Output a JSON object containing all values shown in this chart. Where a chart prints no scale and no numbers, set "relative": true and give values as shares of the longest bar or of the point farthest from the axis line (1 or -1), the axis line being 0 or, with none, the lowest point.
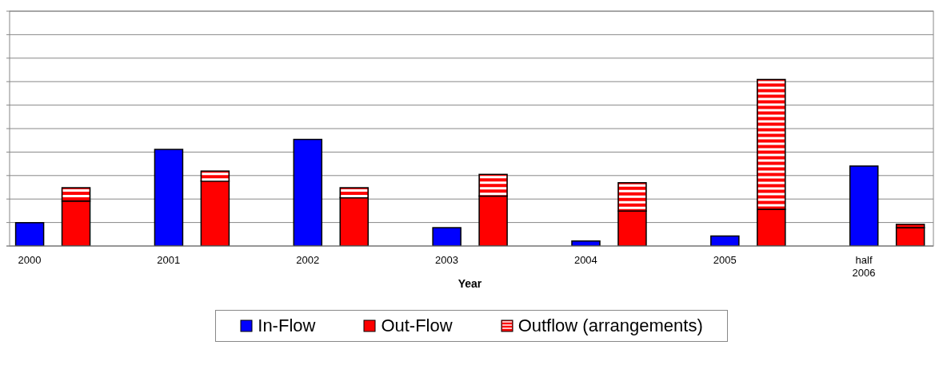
{
  "chart_data": {
    "type": "bar",
    "xlabel": "Year",
    "categories": [
      "2000",
      null,
      null,
      "2001",
      null,
      null,
      "2002",
      null,
      null,
      "2003",
      null,
      null,
      "2004",
      null,
      null,
      "2005",
      null,
      null,
      "half 2006",
      null
    ],
    "relative": true,
    "stacked": true,
    "grid": "y",
    "legend": "bottom",
    "series": [
      {
        "name": "In-Flow",
        "color": "#0000ff",
        "values": [
          0.14,
          null,
          null,
          0.58,
          null,
          null,
          0.64,
          null,
          null,
          0.11,
          null,
          null,
          0.03,
          null,
          null,
          0.06,
          null,
          null,
          0.48,
          null
        ]
      },
      {
        "name": "Out-Flow",
        "color": "#ff0000",
        "values": [
          null,
          0.27,
          null,
          null,
          0.39,
          null,
          null,
          0.29,
          null,
          null,
          0.3,
          null,
          null,
          0.21,
          null,
          null,
          0.22,
          null,
          null,
          0.11
        ]
      },
      {
        "name": "Outflow (arrangements)",
        "color": "#ff0000",
        "values": [
          null,
          0.08,
          null,
          null,
          0.06,
          null,
          null,
          0.06,
          null,
          null,
          0.13,
          null,
          null,
          0.17,
          null,
          null,
          0.78,
          null,
          null,
          0.02
        ]
      }
    ]
  }
}
